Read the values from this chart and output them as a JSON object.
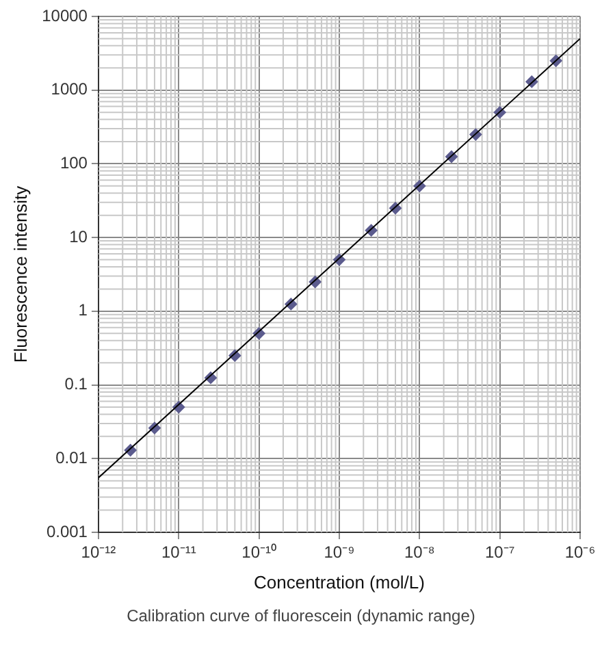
{
  "chart_data": {
    "type": "scatter",
    "xlabel": "Concentration (mol/L)",
    "ylabel": "Fluorescence intensity",
    "annotations": [
      "Calibration curve of fluorescein (dynamic range)"
    ],
    "log": "xy",
    "grid": true,
    "legend": false,
    "marker": "diamond",
    "xlim": [
      1e-12,
      1e-06
    ],
    "ylim": [
      0.001,
      10000
    ],
    "xticks": [
      {
        "value": 1e-12,
        "label": "10⁻¹²"
      },
      {
        "value": 1e-11,
        "label": "10⁻¹¹"
      },
      {
        "value": 1e-10,
        "label": "10⁻¹⁰"
      },
      {
        "value": 1e-09,
        "label": "10⁻⁹"
      },
      {
        "value": 1e-08,
        "label": "10⁻⁸"
      },
      {
        "value": 1e-07,
        "label": "10⁻⁷"
      },
      {
        "value": 1e-06,
        "label": "10⁻⁶"
      }
    ],
    "yticks": [
      0.001,
      0.01,
      0.1,
      1,
      10,
      100,
      1000,
      10000
    ],
    "series": [
      {
        "color": "#5c5c8e",
        "x": [
          2.5e-12,
          5e-12,
          1e-11,
          2.5e-11,
          5e-11,
          1e-10,
          2.5e-10,
          5e-10,
          1e-09,
          2.5e-09,
          5e-09,
          1e-08,
          2.5e-08,
          5e-08,
          1e-07,
          2.5e-07,
          5e-07
        ],
        "values": [
          0.013,
          0.026,
          0.05,
          0.125,
          0.25,
          0.5,
          1.25,
          2.5,
          5,
          12.5,
          25,
          50,
          125,
          250,
          500,
          1300,
          2500
        ]
      },
      {
        "type": "line",
        "color": "#000000",
        "marker": "none",
        "x": [
          1e-12,
          1e-06
        ],
        "values": [
          0.0055,
          5000
        ]
      }
    ]
  }
}
